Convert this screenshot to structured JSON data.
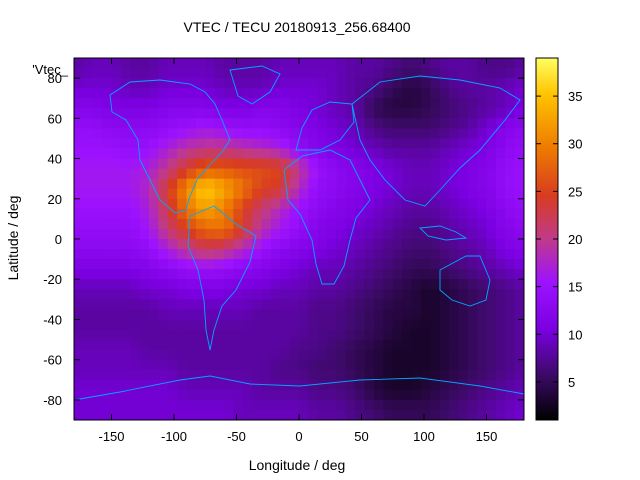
{
  "chart_data": {
    "type": "heatmap",
    "title": "VTEC / TECU 20180913_256.68400",
    "xlabel": "Longitude / deg",
    "ylabel": "Latitude / deg",
    "legend_key": "'Vtec_",
    "xlim": [
      -180,
      180
    ],
    "ylim": [
      -90,
      90
    ],
    "x_ticks": [
      -150,
      -100,
      -50,
      0,
      50,
      100,
      150
    ],
    "y_ticks": [
      -80,
      -60,
      -40,
      -20,
      0,
      20,
      40,
      60,
      80
    ],
    "colorbar": {
      "range": [
        1,
        39
      ],
      "ticks": [
        5,
        10,
        15,
        20,
        25,
        30,
        35
      ],
      "palette": [
        "#000000",
        "#3a0a63",
        "#7a00e0",
        "#9d12ff",
        "#c03a8a",
        "#d83c20",
        "#ee7a00",
        "#ffc400",
        "#ffff60"
      ]
    },
    "grid": false,
    "vtec_grid": {
      "lon_step": 15,
      "lat_step": 10,
      "lon_start": -180,
      "lat_start": 85,
      "rows": [
        [
          8,
          9,
          9,
          8,
          8,
          9,
          9,
          9,
          8,
          8,
          8,
          9,
          9,
          9,
          9,
          8,
          8,
          7,
          6,
          7,
          8,
          8,
          7,
          7,
          8
        ],
        [
          10,
          10,
          10,
          9,
          9,
          10,
          10,
          10,
          9,
          9,
          9,
          10,
          10,
          10,
          9,
          8,
          7,
          5,
          4,
          5,
          7,
          8,
          8,
          9,
          10
        ],
        [
          12,
          12,
          11,
          11,
          11,
          12,
          12,
          12,
          11,
          11,
          12,
          12,
          11,
          10,
          9,
          8,
          5,
          4,
          4,
          5,
          6,
          7,
          8,
          9,
          11
        ],
        [
          14,
          14,
          13,
          13,
          13,
          14,
          15,
          16,
          15,
          14,
          14,
          13,
          12,
          11,
          10,
          9,
          7,
          6,
          6,
          6,
          7,
          8,
          10,
          12,
          13
        ],
        [
          15,
          15,
          15,
          14,
          15,
          17,
          19,
          20,
          20,
          19,
          18,
          17,
          14,
          12,
          11,
          10,
          9,
          8,
          8,
          8,
          9,
          10,
          11,
          13,
          14
        ],
        [
          16,
          16,
          16,
          16,
          17,
          20,
          24,
          27,
          27,
          26,
          26,
          25,
          20,
          15,
          13,
          12,
          11,
          10,
          9,
          9,
          10,
          11,
          12,
          14,
          15
        ],
        [
          16,
          16,
          16,
          16,
          18,
          24,
          31,
          36,
          33,
          29,
          25,
          24,
          18,
          14,
          13,
          12,
          11,
          10,
          9,
          9,
          10,
          11,
          12,
          14,
          15
        ],
        [
          15,
          15,
          15,
          15,
          17,
          23,
          29,
          33,
          30,
          25,
          21,
          18,
          15,
          13,
          12,
          11,
          10,
          9,
          8,
          8,
          9,
          10,
          11,
          13,
          14
        ],
        [
          14,
          14,
          14,
          14,
          16,
          21,
          25,
          28,
          29,
          24,
          19,
          16,
          14,
          12,
          11,
          10,
          9,
          8,
          7,
          7,
          8,
          9,
          10,
          12,
          13
        ],
        [
          13,
          13,
          13,
          13,
          14,
          17,
          20,
          22,
          21,
          18,
          15,
          13,
          12,
          11,
          10,
          9,
          8,
          7,
          6,
          6,
          7,
          8,
          9,
          11,
          12
        ],
        [
          11,
          11,
          11,
          11,
          12,
          13,
          14,
          15,
          14,
          13,
          12,
          11,
          10,
          9,
          9,
          8,
          7,
          6,
          5,
          5,
          6,
          7,
          8,
          9,
          10
        ],
        [
          9,
          9,
          9,
          9,
          10,
          10,
          11,
          11,
          11,
          10,
          10,
          9,
          9,
          8,
          8,
          7,
          6,
          5,
          4,
          3,
          4,
          5,
          6,
          7,
          8
        ],
        [
          8,
          8,
          8,
          8,
          8,
          9,
          9,
          9,
          9,
          9,
          8,
          8,
          8,
          7,
          7,
          6,
          5,
          4,
          4,
          3,
          4,
          5,
          6,
          7,
          8
        ],
        [
          8,
          8,
          8,
          8,
          8,
          8,
          8,
          8,
          8,
          8,
          8,
          8,
          8,
          7,
          7,
          6,
          5,
          4,
          3,
          3,
          4,
          5,
          6,
          7,
          8
        ],
        [
          9,
          9,
          9,
          9,
          8,
          8,
          8,
          8,
          8,
          8,
          8,
          8,
          7,
          7,
          6,
          5,
          4,
          3,
          3,
          3,
          4,
          5,
          6,
          7,
          8
        ],
        [
          9,
          9,
          9,
          9,
          9,
          9,
          8,
          8,
          8,
          8,
          8,
          7,
          7,
          6,
          6,
          5,
          4,
          3,
          3,
          3,
          4,
          5,
          6,
          7,
          8
        ],
        [
          10,
          10,
          10,
          10,
          10,
          10,
          9,
          9,
          9,
          9,
          8,
          8,
          8,
          7,
          7,
          6,
          4,
          3,
          3,
          4,
          5,
          6,
          7,
          8,
          9
        ],
        [
          10,
          10,
          10,
          10,
          10,
          10,
          10,
          10,
          10,
          9,
          9,
          9,
          9,
          8,
          8,
          7,
          6,
          5,
          5,
          5,
          6,
          7,
          8,
          9,
          10
        ]
      ]
    }
  }
}
